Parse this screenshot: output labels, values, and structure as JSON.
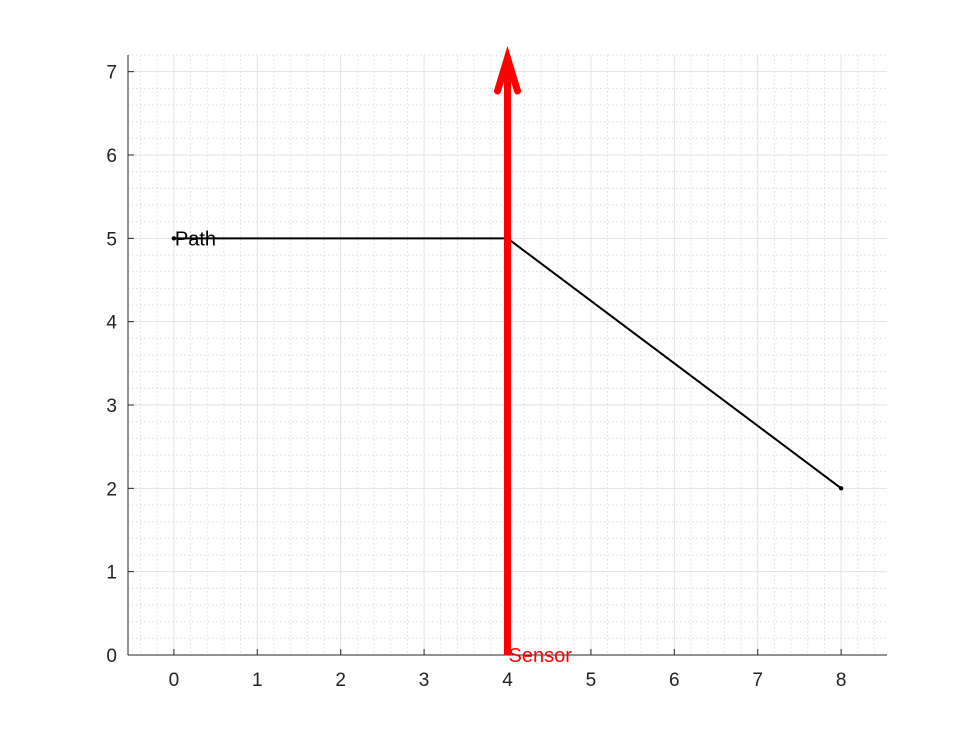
{
  "chart_data": {
    "type": "line",
    "title": "",
    "xlabel": "",
    "ylabel": "",
    "xlim": [
      -0.55,
      8.55
    ],
    "ylim": [
      0,
      7.2
    ],
    "x_ticks": [
      0,
      1,
      2,
      3,
      4,
      5,
      6,
      7,
      8
    ],
    "y_ticks": [
      0,
      1,
      2,
      3,
      4,
      5,
      6,
      7
    ],
    "grid": true,
    "minor_grid": true,
    "series": [
      {
        "color": "#000000",
        "points": [
          {
            "x": 0,
            "y": 5
          },
          {
            "x": 4,
            "y": 5
          },
          {
            "x": 8,
            "y": 2
          }
        ]
      }
    ],
    "arrow": {
      "color": "#ff0000",
      "x": 4,
      "y_start": 0,
      "y_end": 7.2
    },
    "annotations": [
      {
        "text": "Path",
        "x": 0,
        "y": 5,
        "color": "#000000"
      },
      {
        "text": "Sensor",
        "x": 4,
        "y": 0,
        "color": "#ff0000"
      }
    ]
  }
}
